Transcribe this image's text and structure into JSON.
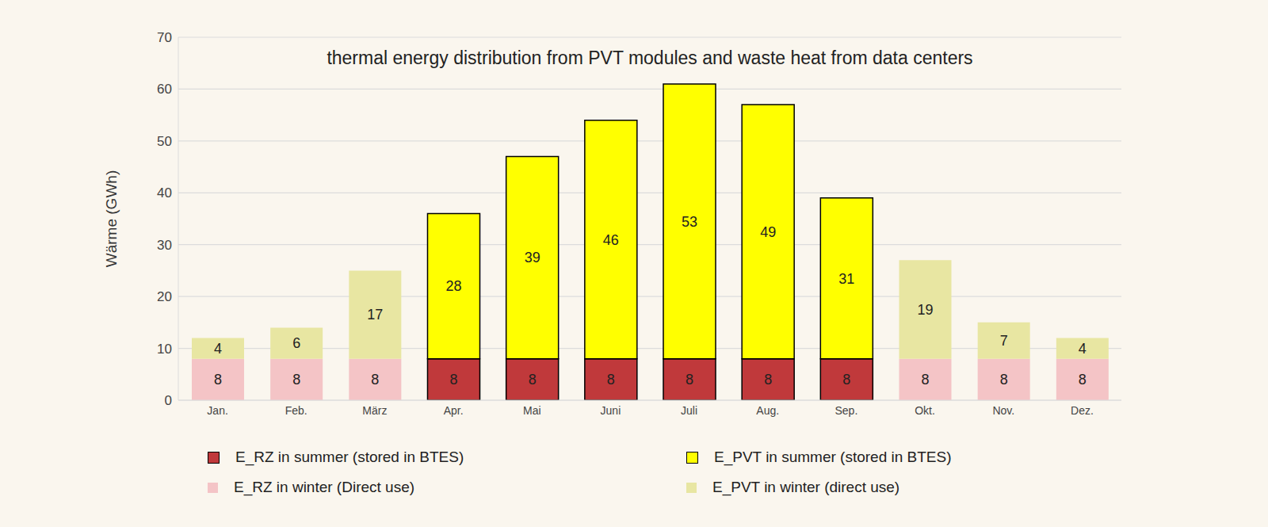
{
  "chart_data": {
    "type": "bar",
    "title": "thermal energy distribution from PVT modules and waste heat from data centers",
    "y_label": "Wärme (GWh)",
    "categories": [
      "Jan.",
      "Feb.",
      "März",
      "Apr.",
      "Mai",
      "Juni",
      "Juli",
      "Aug.",
      "Sep.",
      "Okt.",
      "Nov.",
      "Dez."
    ],
    "series": [
      {
        "name": "E_RZ in summer (stored in BTES)",
        "color": "#c0393b",
        "values": [
          null,
          null,
          null,
          8,
          8,
          8,
          8,
          8,
          8,
          null,
          null,
          null
        ]
      },
      {
        "name": "E_RZ in winter (Direct use)",
        "color": "#f4c4c6",
        "values": [
          8,
          8,
          8,
          null,
          null,
          null,
          null,
          null,
          null,
          8,
          8,
          8
        ]
      },
      {
        "name": "E_PVT in summer (stored in BTES)",
        "color": "#ffff00",
        "values": [
          null,
          null,
          null,
          28,
          39,
          46,
          53,
          49,
          31,
          null,
          null,
          null
        ]
      },
      {
        "name": "E_PVT in winter (direct use)",
        "color": "#e8e6a2",
        "values": [
          4,
          6,
          17,
          null,
          null,
          null,
          null,
          null,
          null,
          19,
          7,
          4
        ]
      }
    ],
    "ylim": [
      0,
      70
    ],
    "yticks": [
      0,
      10,
      20,
      30,
      40,
      50,
      60,
      70
    ],
    "grid": true,
    "stacked": true,
    "data_labels": true
  }
}
